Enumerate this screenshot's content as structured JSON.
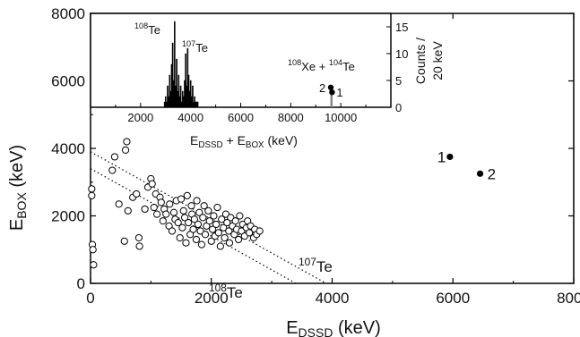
{
  "chart_data": [
    {
      "type": "scatter",
      "xlabel": "E",
      "xlabel_sub": "DSSD",
      "xlabel_unit": " (keV)",
      "ylabel": "E",
      "ylabel_sub": "BOX",
      "ylabel_unit": " (keV)",
      "xlim": [
        0,
        8000
      ],
      "ylim": [
        0,
        8000
      ],
      "xticks": [
        "0",
        "2000",
        "4000",
        "6000",
        "8000"
      ],
      "yticks": [
        "0",
        "2000",
        "4000",
        "6000",
        "8000"
      ],
      "open_points": [
        [
          20,
          2800
        ],
        [
          20,
          2600
        ],
        [
          30,
          1150
        ],
        [
          40,
          1000
        ],
        [
          50,
          550
        ],
        [
          360,
          3350
        ],
        [
          400,
          3750
        ],
        [
          470,
          2350
        ],
        [
          560,
          1250
        ],
        [
          580,
          3950
        ],
        [
          600,
          4200
        ],
        [
          620,
          2150
        ],
        [
          700,
          2550
        ],
        [
          760,
          2650
        ],
        [
          800,
          1350
        ],
        [
          810,
          1100
        ],
        [
          900,
          2200
        ],
        [
          950,
          2850
        ],
        [
          1000,
          3100
        ],
        [
          1020,
          2950
        ],
        [
          1050,
          2250
        ],
        [
          1080,
          2650
        ],
        [
          1100,
          2050
        ],
        [
          1150,
          2550
        ],
        [
          1170,
          2400
        ],
        [
          1200,
          1850
        ],
        [
          1220,
          2200
        ],
        [
          1250,
          2050
        ],
        [
          1300,
          1700
        ],
        [
          1310,
          2350
        ],
        [
          1350,
          1550
        ],
        [
          1380,
          2100
        ],
        [
          1400,
          1900
        ],
        [
          1420,
          2450
        ],
        [
          1450,
          1800
        ],
        [
          1480,
          1350
        ],
        [
          1500,
          2500
        ],
        [
          1520,
          1650
        ],
        [
          1540,
          2150
        ],
        [
          1560,
          1950
        ],
        [
          1580,
          1200
        ],
        [
          1600,
          2600
        ],
        [
          1620,
          1800
        ],
        [
          1650,
          1450
        ],
        [
          1670,
          2300
        ],
        [
          1680,
          2050
        ],
        [
          1700,
          1600
        ],
        [
          1720,
          1900
        ],
        [
          1750,
          1300
        ],
        [
          1760,
          2450
        ],
        [
          1780,
          1750
        ],
        [
          1800,
          2100
        ],
        [
          1820,
          1550
        ],
        [
          1840,
          1150
        ],
        [
          1860,
          1950
        ],
        [
          1880,
          2300
        ],
        [
          1900,
          1450
        ],
        [
          1920,
          1700
        ],
        [
          1950,
          2150
        ],
        [
          1970,
          1850
        ],
        [
          2000,
          1250
        ],
        [
          2020,
          1600
        ],
        [
          2040,
          2000
        ],
        [
          2060,
          1400
        ],
        [
          2080,
          1750
        ],
        [
          2100,
          2250
        ],
        [
          2120,
          1500
        ],
        [
          2150,
          1100
        ],
        [
          2170,
          1900
        ],
        [
          2200,
          1650
        ],
        [
          2220,
          1350
        ],
        [
          2240,
          2050
        ],
        [
          2260,
          1800
        ],
        [
          2290,
          1550
        ],
        [
          2300,
          1200
        ],
        [
          2320,
          1950
        ],
        [
          2350,
          1700
        ],
        [
          2380,
          1450
        ],
        [
          2400,
          1850
        ],
        [
          2420,
          1600
        ],
        [
          2450,
          1300
        ],
        [
          2470,
          2000
        ],
        [
          2500,
          1550
        ],
        [
          2520,
          1750
        ],
        [
          2550,
          1400
        ],
        [
          2580,
          1650
        ],
        [
          2600,
          1850
        ],
        [
          2630,
          1500
        ],
        [
          2650,
          1700
        ],
        [
          2700,
          1350
        ],
        [
          2720,
          1600
        ],
        [
          2750,
          1450
        ],
        [
          2800,
          1550
        ]
      ],
      "filled_points": [
        {
          "x": 5950,
          "y": 3750,
          "label": "1"
        },
        {
          "x": 6450,
          "y": 3250,
          "label": "2"
        }
      ],
      "dotted_lines": [
        {
          "x0": 0,
          "y0": 3400,
          "x1": 3400,
          "y1": 0
        },
        {
          "x0": 0,
          "y0": 3900,
          "x1": 3900,
          "y1": 0
        }
      ],
      "annotations": {
        "te108": {
          "mass": "108",
          "el": "Te"
        },
        "te107": {
          "mass": "107",
          "el": "Te"
        }
      }
    },
    {
      "type": "bar",
      "xlabel": "E",
      "xlabel_sub1": "DSSD",
      "xlabel_mid": " + E",
      "xlabel_sub2": "BOX",
      "xlabel_unit": " (keV)",
      "ylabel_line1": "Counts /",
      "ylabel_line2": "20 keV",
      "xlim": [
        0,
        12000
      ],
      "ylim": [
        0,
        17.5
      ],
      "xticks": [
        "2000",
        "4000",
        "6000",
        "8000",
        "10000"
      ],
      "yticks": [
        "0",
        "5",
        "10",
        "15"
      ],
      "bins_x": [
        2960,
        3000,
        3040,
        3080,
        3120,
        3160,
        3200,
        3240,
        3280,
        3320,
        3360,
        3400,
        3440,
        3480,
        3520,
        3560,
        3600,
        3640,
        3680,
        3720,
        3760,
        3800,
        3840,
        3880,
        3920,
        3960,
        4000,
        4040,
        4080,
        4120,
        4160,
        4200,
        4240,
        4280
      ],
      "bins_y": [
        1,
        2,
        1,
        4,
        2,
        6,
        3,
        8,
        12,
        5,
        16,
        4,
        9,
        3,
        6,
        2,
        4,
        1,
        3,
        2,
        5,
        10,
        4,
        11,
        6,
        3,
        5,
        2,
        4,
        1,
        2,
        1,
        1,
        1
      ],
      "filled_points": [
        {
          "x": 9650,
          "y": 2.8,
          "label": "1"
        },
        {
          "x": 9600,
          "y": 3.7,
          "label": "2"
        }
      ],
      "annotations": {
        "te108": {
          "mass": "108",
          "el": "Te"
        },
        "te107": {
          "mass": "107",
          "el": "Te"
        },
        "xe": {
          "mass": "108",
          "el": "Xe + ",
          "mass2": "104",
          "el2": "Te"
        }
      }
    }
  ]
}
